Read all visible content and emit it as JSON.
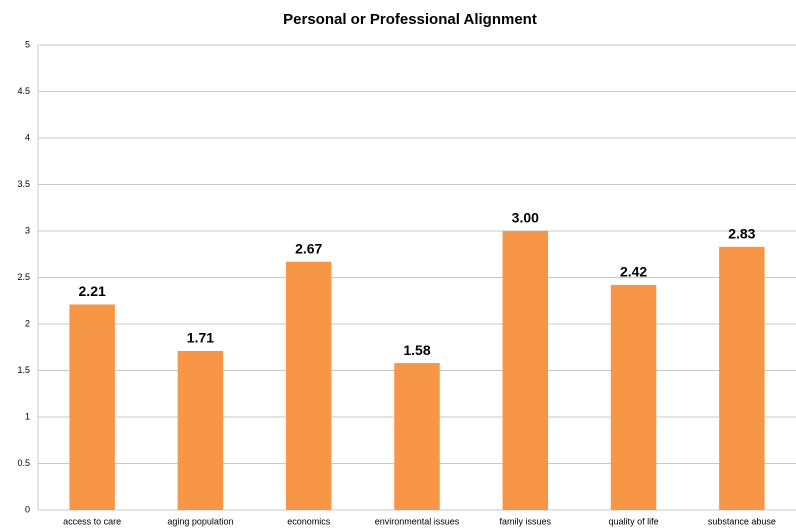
{
  "chart_data": {
    "type": "bar",
    "title": "Personal or Professional Alignment",
    "categories": [
      "access to care",
      "aging population",
      "economics",
      "environmental issues",
      "family issues",
      "quality of life",
      "substance abuse"
    ],
    "values": [
      2.21,
      1.71,
      2.67,
      1.58,
      3.0,
      2.42,
      2.83
    ],
    "value_labels": [
      "2.21",
      "1.71",
      "2.67",
      "1.58",
      "3.00",
      "2.42",
      "2.83"
    ],
    "color": "#f79646",
    "ylim": [
      0,
      5
    ],
    "yticks": [
      0,
      0.5,
      1,
      1.5,
      2,
      2.5,
      3,
      3.5,
      4,
      4.5,
      5
    ],
    "grid": true
  }
}
